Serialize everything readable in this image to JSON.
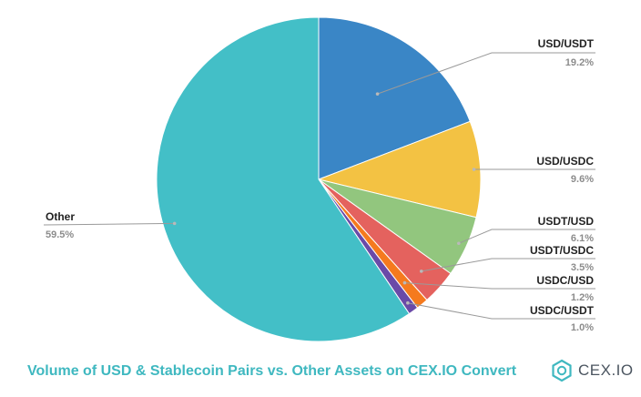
{
  "chart_data": {
    "type": "pie",
    "title": "Volume of USD & Stablecoin Pairs vs. Other Assets on CEX.IO Convert",
    "slices": [
      {
        "label": "USD/USDT",
        "value": 19.2,
        "value_label": "19.2%",
        "color": "#3a86c6"
      },
      {
        "label": "USD/USDC",
        "value": 9.6,
        "value_label": "9.6%",
        "color": "#f3c243"
      },
      {
        "label": "USDT/USD",
        "value": 6.1,
        "value_label": "6.1%",
        "color": "#92c67e"
      },
      {
        "label": "USDT/USDC",
        "value": 3.5,
        "value_label": "3.5%",
        "color": "#e4625e"
      },
      {
        "label": "USDC/USD",
        "value": 1.2,
        "value_label": "1.2%",
        "color": "#f57a1e"
      },
      {
        "label": "USDC/USDT",
        "value": 1.0,
        "value_label": "1.0%",
        "color": "#6a4aa8"
      },
      {
        "label": "Other",
        "value": 59.5,
        "value_label": "59.5%",
        "color": "#43bfc7"
      }
    ],
    "legend": "callout labels"
  },
  "branding": {
    "logo_text": "CEX.IO",
    "logo_icon": "cexio-logo-icon"
  },
  "colors": {
    "title": "#3fb8c0",
    "leader_line": "#9a9a9a",
    "label_name": "#222222",
    "label_value": "#8c8c8c"
  }
}
